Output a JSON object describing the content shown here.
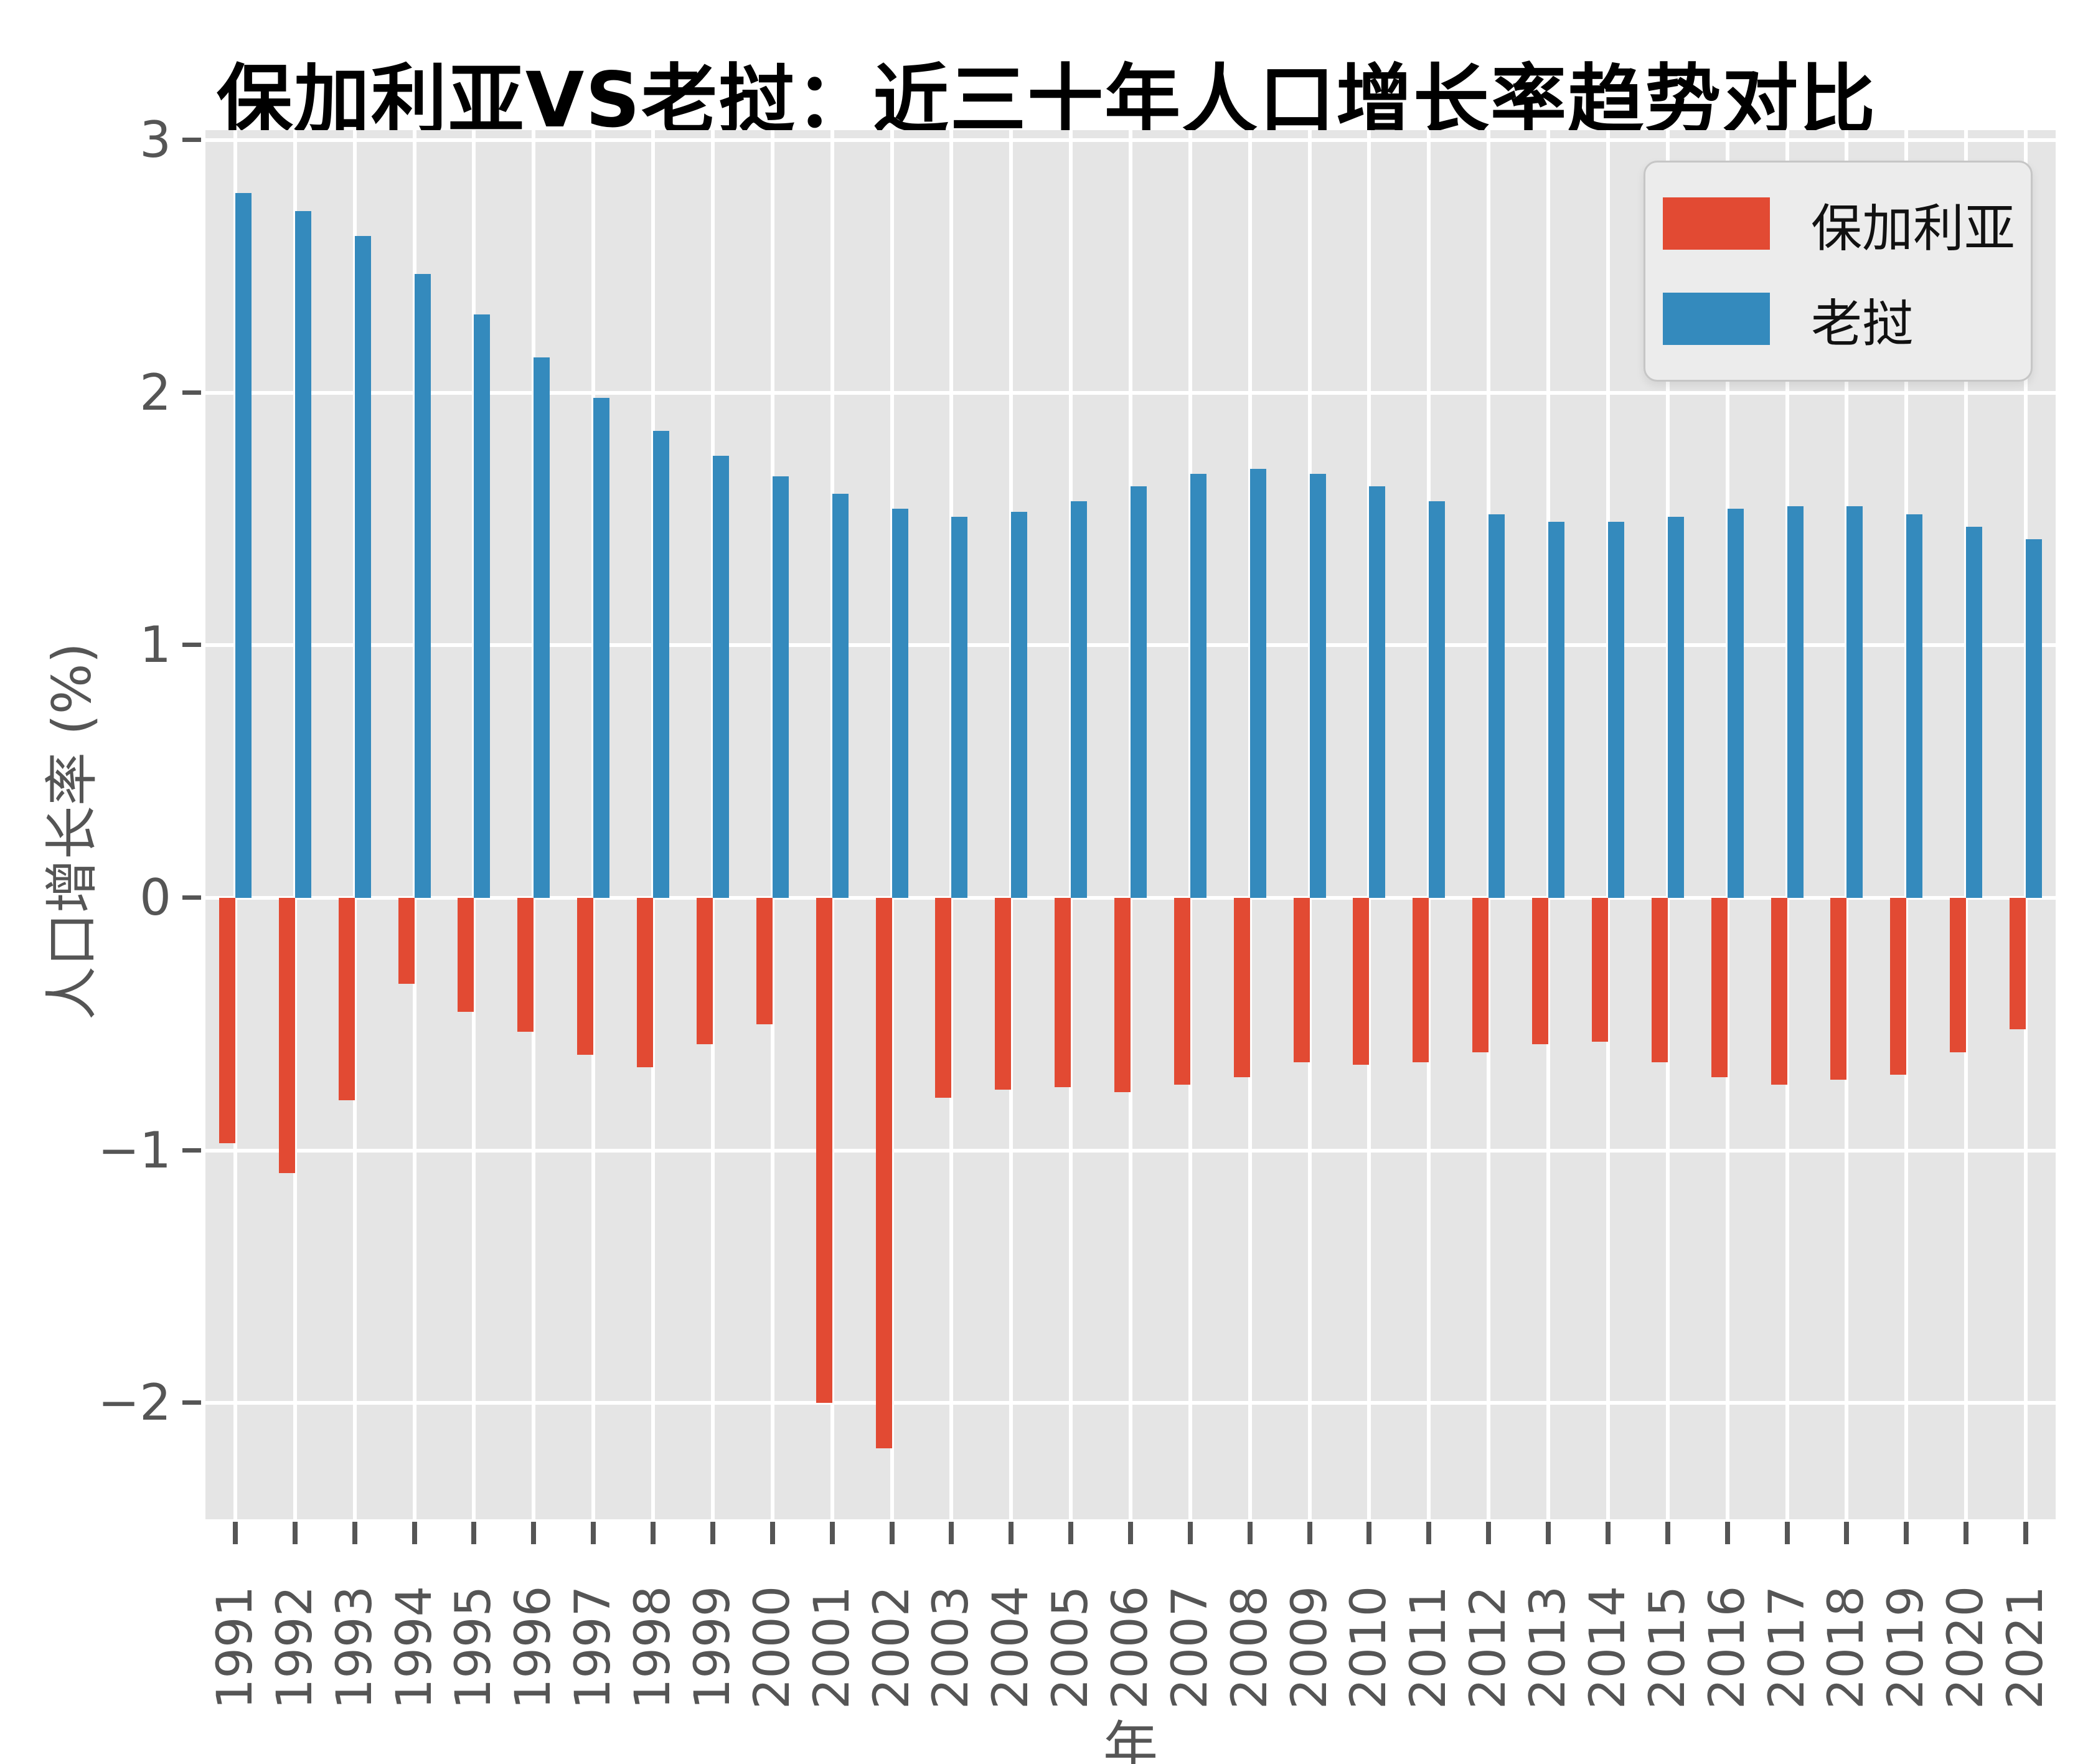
{
  "title": "保加利亚VS老挝：近三十年人口增长率趋势对比",
  "chart_data": {
    "type": "bar",
    "title": "保加利亚VS老挝：近三十年人口增长率趋势对比",
    "xlabel": "年",
    "ylabel": "人口增长率 (%)",
    "categories": [
      "1991",
      "1992",
      "1993",
      "1994",
      "1995",
      "1996",
      "1997",
      "1998",
      "1999",
      "2000",
      "2001",
      "2002",
      "2003",
      "2004",
      "2005",
      "2006",
      "2007",
      "2008",
      "2009",
      "2010",
      "2011",
      "2012",
      "2013",
      "2014",
      "2015",
      "2016",
      "2017",
      "2018",
      "2019",
      "2020",
      "2021"
    ],
    "series": [
      {
        "name": "保加利亚",
        "color": "#E24A33",
        "values": [
          -0.97,
          -1.09,
          -0.8,
          -0.34,
          -0.45,
          -0.53,
          -0.62,
          -0.67,
          -0.58,
          -0.5,
          -2.0,
          -2.18,
          -0.79,
          -0.76,
          -0.75,
          -0.77,
          -0.74,
          -0.71,
          -0.65,
          -0.66,
          -0.65,
          -0.61,
          -0.58,
          -0.57,
          -0.65,
          -0.71,
          -0.74,
          -0.72,
          -0.7,
          -0.61,
          -0.52
        ]
      },
      {
        "name": "老挝",
        "color": "#348ABD",
        "values": [
          2.79,
          2.72,
          2.62,
          2.47,
          2.31,
          2.14,
          1.98,
          1.85,
          1.75,
          1.67,
          1.6,
          1.54,
          1.51,
          1.53,
          1.57,
          1.63,
          1.68,
          1.7,
          1.68,
          1.63,
          1.57,
          1.52,
          1.49,
          1.49,
          1.51,
          1.54,
          1.55,
          1.55,
          1.52,
          1.47,
          1.42
        ]
      }
    ],
    "ylim": [
      -2.46,
      3.04
    ],
    "yticks": [
      {
        "value": 3,
        "label": "3"
      },
      {
        "value": 2,
        "label": "2"
      },
      {
        "value": 1,
        "label": "1"
      },
      {
        "value": 0,
        "label": "0"
      },
      {
        "value": -1,
        "label": "−1"
      },
      {
        "value": -2,
        "label": "−2"
      }
    ],
    "grid": true,
    "legend_position": "upper right",
    "colors": {
      "plot_background": "#E5E5E5",
      "figure_background": "#FFFFFF",
      "gridline": "#FFFFFF",
      "tick_text": "#555555",
      "title_text": "#000000"
    }
  }
}
